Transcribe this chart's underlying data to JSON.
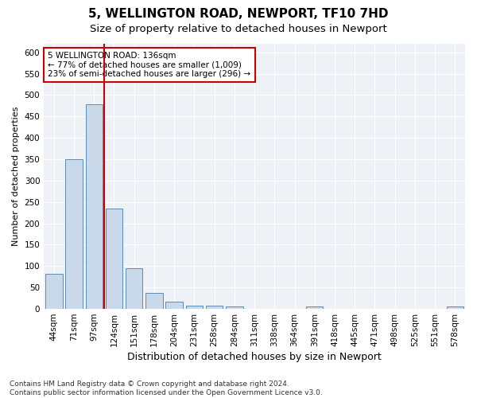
{
  "title1": "5, WELLINGTON ROAD, NEWPORT, TF10 7HD",
  "title2": "Size of property relative to detached houses in Newport",
  "xlabel": "Distribution of detached houses by size in Newport",
  "ylabel": "Number of detached properties",
  "categories": [
    "44sqm",
    "71sqm",
    "97sqm",
    "124sqm",
    "151sqm",
    "178sqm",
    "204sqm",
    "231sqm",
    "258sqm",
    "284sqm",
    "311sqm",
    "338sqm",
    "364sqm",
    "391sqm",
    "418sqm",
    "445sqm",
    "471sqm",
    "498sqm",
    "525sqm",
    "551sqm",
    "578sqm"
  ],
  "values": [
    82,
    350,
    478,
    235,
    95,
    37,
    16,
    8,
    8,
    5,
    0,
    0,
    0,
    5,
    0,
    0,
    0,
    0,
    0,
    0,
    5
  ],
  "bar_color": "#c9d9ea",
  "bar_edge_color": "#5b8db8",
  "vline_x": 2.5,
  "vline_color": "#cc0000",
  "annotation_text": "5 WELLINGTON ROAD: 136sqm\n← 77% of detached houses are smaller (1,009)\n23% of semi-detached houses are larger (296) →",
  "annotation_box_color": "#ffffff",
  "annotation_box_edge": "#cc0000",
  "ylim": [
    0,
    620
  ],
  "yticks": [
    0,
    50,
    100,
    150,
    200,
    250,
    300,
    350,
    400,
    450,
    500,
    550,
    600
  ],
  "footer": "Contains HM Land Registry data © Crown copyright and database right 2024.\nContains public sector information licensed under the Open Government Licence v3.0.",
  "bg_color": "#eef2f7",
  "grid_color": "#ffffff",
  "fig_bg": "#ffffff",
  "title1_fontsize": 11,
  "title2_fontsize": 9.5,
  "xlabel_fontsize": 9,
  "ylabel_fontsize": 8,
  "tick_fontsize": 7.5,
  "footer_fontsize": 6.5,
  "annot_fontsize": 7.5
}
